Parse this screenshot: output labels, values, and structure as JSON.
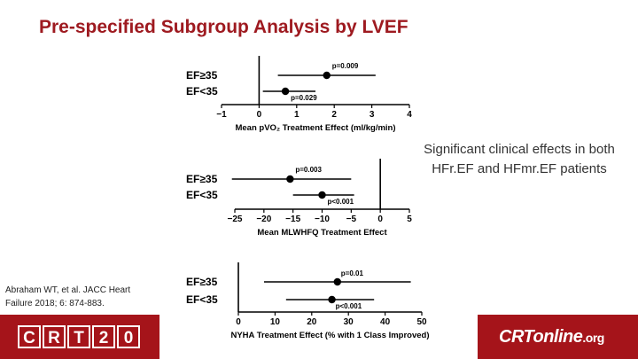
{
  "title": "Pre-specified Subgroup Analysis by LVEF",
  "callout": "Significant clinical effects in both HFr.EF and HFmr.EF patients",
  "citation": "Abraham WT, et al. JACC Heart Failure 2018; 6: 874-883.",
  "footer": {
    "logo_left_letters": [
      "C",
      "R",
      "T",
      "2",
      "0"
    ],
    "logo_right_text": "CRTonline",
    "logo_right_suffix": ".org",
    "brand_color": "#a5141a"
  },
  "chart_data": [
    {
      "type": "scatter",
      "categories": [
        "EF≥35",
        "EF<35"
      ],
      "xlabel": "Mean pVO₂ Treatment Effect (ml/kg/min)",
      "xlim": [
        -1,
        4
      ],
      "xticks": [
        -1,
        0,
        1,
        2,
        3,
        4
      ],
      "points": [
        {
          "group": "EF≥35",
          "estimate": 1.8,
          "ci": [
            0.5,
            3.1
          ],
          "p_label": "p=0.009"
        },
        {
          "group": "EF<35",
          "estimate": 0.7,
          "ci": [
            0.1,
            1.5
          ],
          "p_label": "p=0.029"
        }
      ]
    },
    {
      "type": "scatter",
      "categories": [
        "EF≥35",
        "EF<35"
      ],
      "xlabel": "Mean MLWHFQ Treatment Effect",
      "xlim": [
        -25,
        5
      ],
      "xticks": [
        -25,
        -20,
        -15,
        -10,
        -5,
        0,
        5
      ],
      "points": [
        {
          "group": "EF≥35",
          "estimate": -15.5,
          "ci": [
            -25.5,
            -5.0
          ],
          "p_label": "p=0.003"
        },
        {
          "group": "EF<35",
          "estimate": -10.0,
          "ci": [
            -15.0,
            -4.5
          ],
          "p_label": "p<0.001"
        }
      ]
    },
    {
      "type": "scatter",
      "categories": [
        "EF≥35",
        "EF<35"
      ],
      "xlabel": "NYHA Treatment Effect (% with 1 Class Improved)",
      "xlim": [
        0,
        50
      ],
      "xticks": [
        0,
        10,
        20,
        30,
        40,
        50
      ],
      "points": [
        {
          "group": "EF≥35",
          "estimate": 27,
          "ci": [
            7,
            47
          ],
          "p_label": "p=0.01"
        },
        {
          "group": "EF<35",
          "estimate": 25.5,
          "ci": [
            13,
            37
          ],
          "p_label": "p<0.001"
        }
      ]
    }
  ]
}
